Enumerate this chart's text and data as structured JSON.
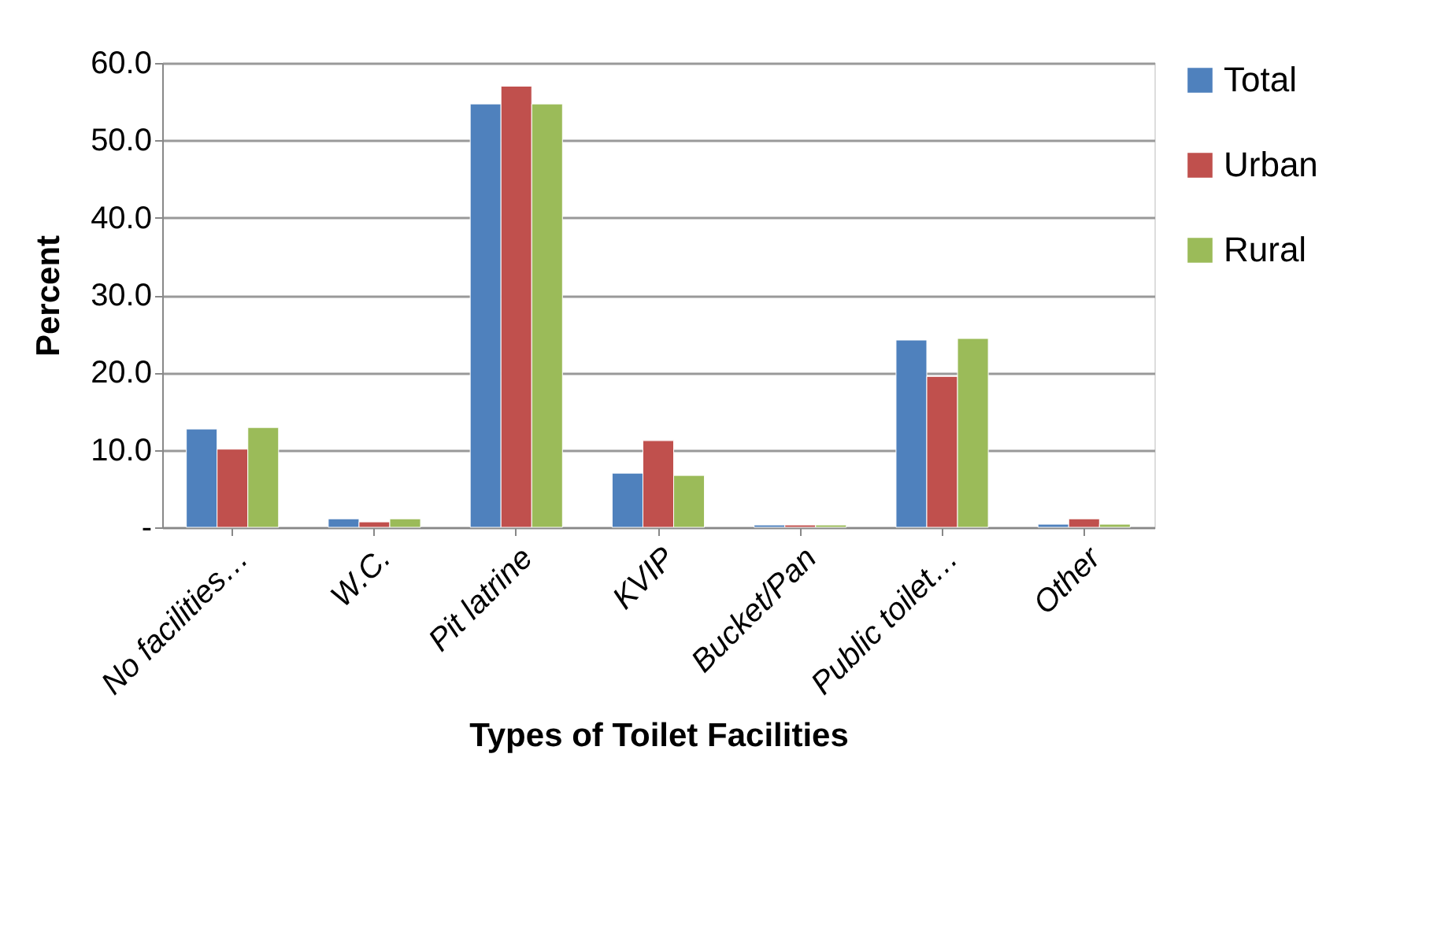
{
  "chart_data": {
    "type": "bar",
    "xlabel": "Types of Toilet Facilities",
    "ylabel": "Percent",
    "categories": [
      "No facilities…",
      "W.C.",
      "Pit latrine",
      "KVIP",
      "Bucket/Pan",
      "Public toilet…",
      "Other"
    ],
    "series": [
      {
        "name": "Total",
        "color": "#4f81bd",
        "values": [
          12.7,
          1.1,
          54.7,
          7.0,
          0.3,
          24.2,
          0.4
        ]
      },
      {
        "name": "Urban",
        "color": "#c0504d",
        "values": [
          10.1,
          0.7,
          57.0,
          11.2,
          0.3,
          19.5,
          1.1
        ]
      },
      {
        "name": "Rural",
        "color": "#9bbb59",
        "values": [
          12.9,
          1.1,
          54.7,
          6.7,
          0.3,
          24.4,
          0.4
        ]
      }
    ],
    "ylim": [
      0,
      60
    ],
    "yticks": [
      {
        "value": 0,
        "label": "-"
      },
      {
        "value": 10,
        "label": "10.0"
      },
      {
        "value": 20,
        "label": "20.0"
      },
      {
        "value": 30,
        "label": "30.0"
      },
      {
        "value": 40,
        "label": "40.0"
      },
      {
        "value": 50,
        "label": "50.0"
      },
      {
        "value": 60,
        "label": "60.0"
      }
    ],
    "grid": "y",
    "legend": "right"
  }
}
